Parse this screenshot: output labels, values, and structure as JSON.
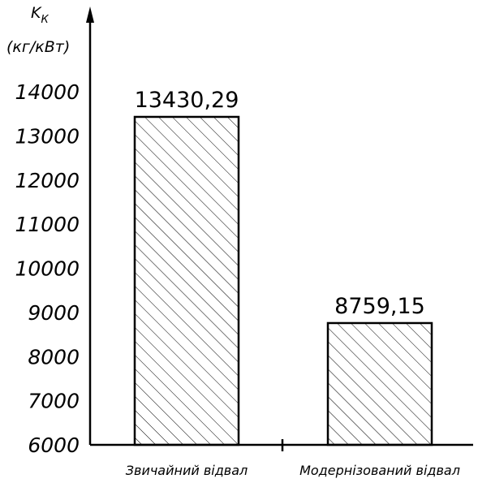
{
  "chart_data": {
    "type": "bar",
    "ylabel_main": "K",
    "ylabel_sub": "К",
    "ylabel_units": "(кг/кВт)",
    "categories": [
      "Звичайний відвал",
      "Модернізований відвал"
    ],
    "values": [
      13430.29,
      8759.15
    ],
    "value_labels": [
      "13430,29",
      "8759,15"
    ],
    "yticks": [
      "6000",
      "7000",
      "8000",
      "9000",
      "10000",
      "11000",
      "12000",
      "13000",
      "14000"
    ],
    "ylim": [
      6000,
      14000
    ],
    "grid": false,
    "fill_pattern": "diagonal-hatch"
  }
}
